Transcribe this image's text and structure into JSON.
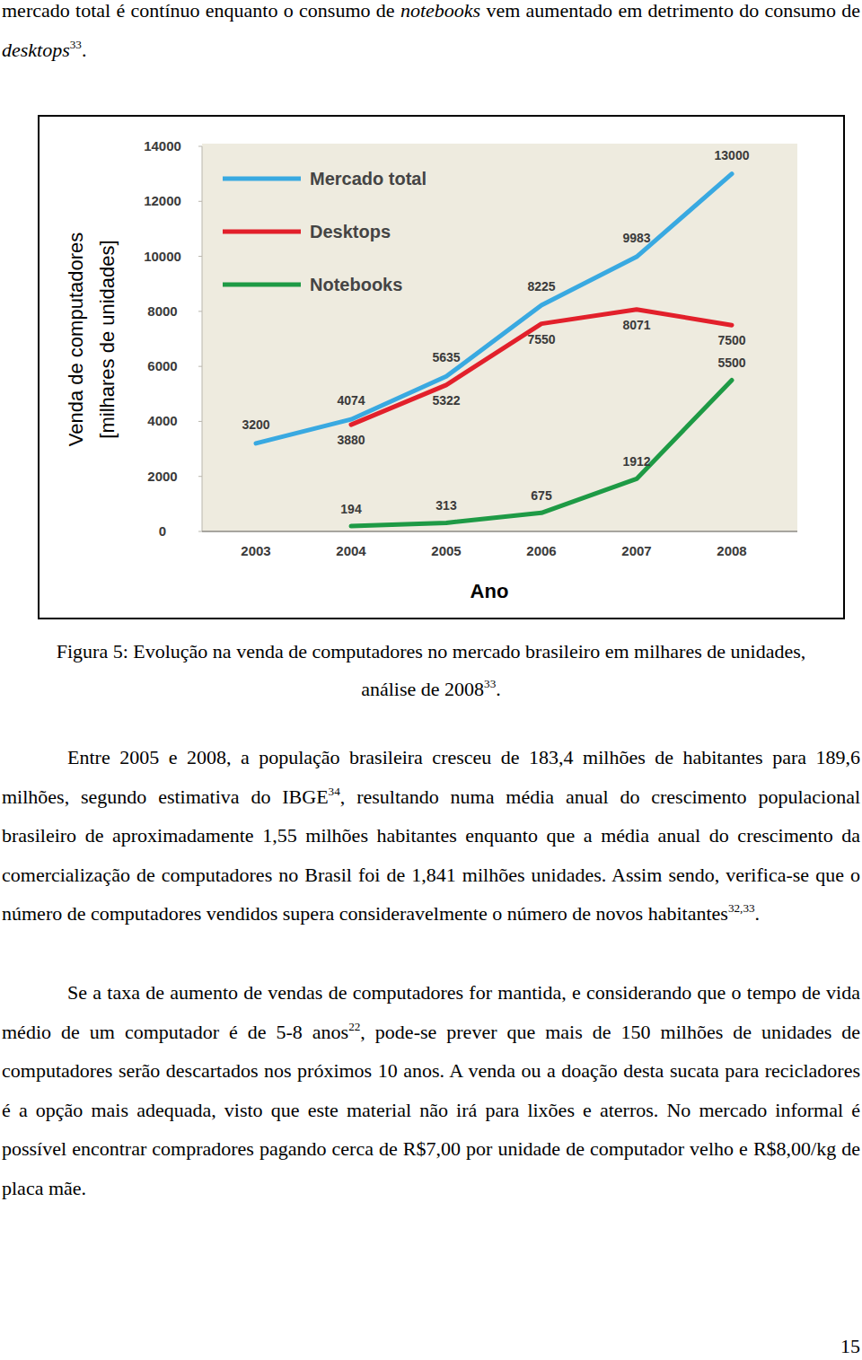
{
  "intro": [
    {
      "text": "mercado total é contínuo enquanto o consumo de "
    },
    {
      "text": "notebooks",
      "format": "italic"
    },
    {
      "text": " vem aumentado em detrimento do consumo de "
    },
    {
      "text": "desktops",
      "format": "italic"
    },
    {
      "text": "33",
      "format": "sup"
    },
    {
      "text": "."
    }
  ],
  "chart_data": {
    "type": "line",
    "y_label": [
      "Venda de computadores",
      "[milhares de unidades]"
    ],
    "x_label": "Ano",
    "categories": [
      "2003",
      "2004",
      "2005",
      "2006",
      "2007",
      "2008"
    ],
    "series": [
      {
        "name": "Mercado total",
        "color": "#39a9e1",
        "values": [
          3200,
          4074,
          5635,
          8225,
          9983,
          13000
        ]
      },
      {
        "name": "Desktops",
        "color": "#e2202b",
        "values": [
          null,
          3880,
          5322,
          7550,
          8071,
          7500
        ]
      },
      {
        "name": "Notebooks",
        "color": "#1e9a45",
        "values": [
          null,
          194,
          313,
          675,
          1912,
          5500
        ]
      }
    ],
    "ylim": [
      0,
      14000
    ],
    "yticks": [
      0,
      2000,
      4000,
      6000,
      8000,
      10000,
      12000,
      14000
    ],
    "grid": false,
    "legend": "top-left",
    "data_labels": true
  },
  "caption": [
    {
      "text": "Figura 5: Evolução na venda de computadores no mercado brasileiro em milhares de unidades, análise de 2008"
    },
    {
      "text": "33",
      "format": "sup"
    },
    {
      "text": "."
    }
  ],
  "paragraphs": [
    [
      {
        "text": "Entre 2005 e 2008, a população brasileira cresceu de 183,4 milhões de habitantes para 189,6 milhões, segundo estimativa do IBGE"
      },
      {
        "text": "34",
        "format": "sup"
      },
      {
        "text": ", resultando numa média anual do crescimento populacional brasileiro de aproximadamente 1,55 milhões habitantes enquanto que a média anual do crescimento da comercialização de computadores no Brasil foi de 1,841 milhões unidades. Assim sendo, verifica-se que o número de computadores vendidos supera consideravelmente o número de novos habitantes"
      },
      {
        "text": "32,33",
        "format": "sup"
      },
      {
        "text": "."
      }
    ],
    [
      {
        "text": "Se a taxa de aumento de vendas de computadores for mantida, e considerando que o tempo de vida médio de um computador é de 5-8 anos"
      },
      {
        "text": "22",
        "format": "sup"
      },
      {
        "text": ", pode-se prever que mais de 150 milhões de unidades de computadores serão descartados nos próximos 10 anos. A venda ou a doação desta sucata para recicladores é a opção mais adequada, visto que este material não irá para lixões e aterros. No mercado informal é possível encontrar compradores pagando cerca de R$7,00 por unidade de computador velho e R$8,00/kg de placa mãe."
      }
    ]
  ],
  "page_number": "15"
}
